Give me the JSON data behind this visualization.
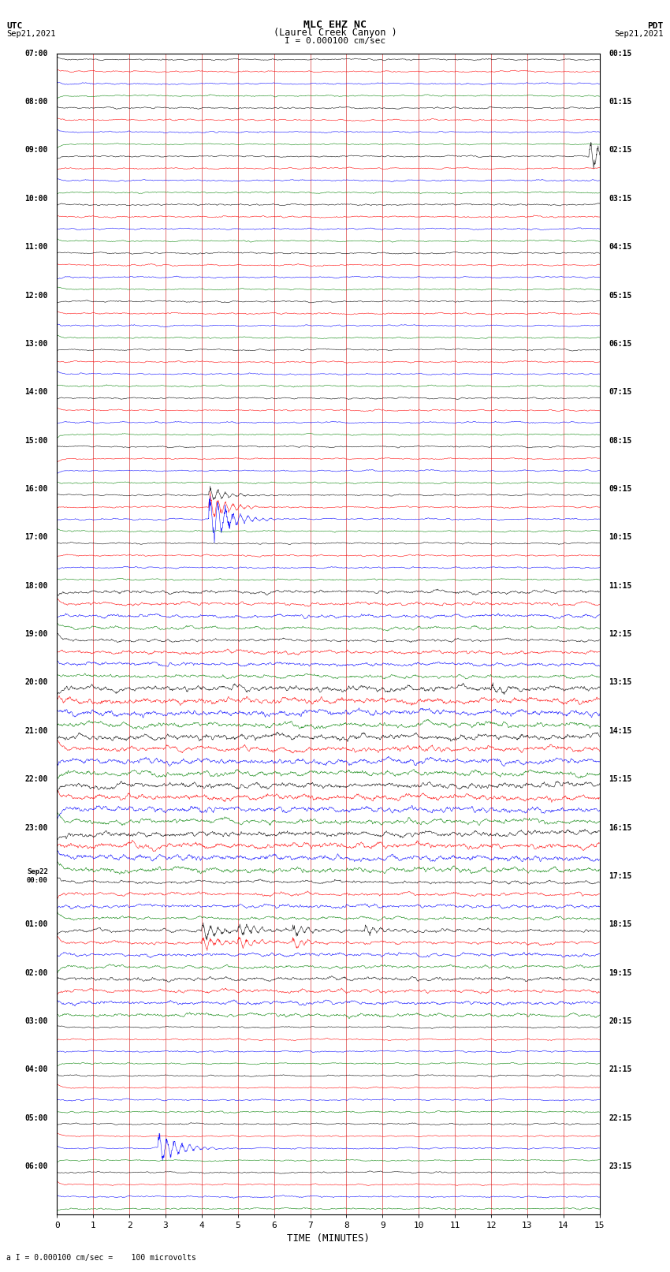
{
  "title_line1": "MLC EHZ NC",
  "title_line2": "(Laurel Creek Canyon )",
  "scale_label": "I = 0.000100 cm/sec",
  "utc_label_line1": "UTC",
  "utc_label_line2": "Sep21,2021",
  "pdt_label_line1": "PDT",
  "pdt_label_line2": "Sep21,2021",
  "bottom_label": "a I = 0.000100 cm/sec =    100 microvolts",
  "xlabel": "TIME (MINUTES)",
  "background_color": "#ffffff",
  "grid_color": "#cc0000",
  "total_rows": 96,
  "minutes_per_row": 15,
  "row_colors": [
    "black",
    "red",
    "blue",
    "green"
  ],
  "left_hour_labels": [
    "07:00",
    "08:00",
    "09:00",
    "10:00",
    "11:00",
    "12:00",
    "13:00",
    "14:00",
    "15:00",
    "16:00",
    "17:00",
    "18:00",
    "19:00",
    "20:00",
    "21:00",
    "22:00",
    "23:00",
    "Sep22",
    "01:00",
    "02:00",
    "03:00",
    "04:00",
    "05:00",
    "06:00"
  ],
  "left_extra_labels": [
    "",
    "",
    "",
    "",
    "",
    "",
    "",
    "",
    "",
    "",
    "",
    "",
    "",
    "",
    "",
    "",
    "",
    "00:00",
    "",
    "",
    "",
    "",
    "",
    ""
  ],
  "right_hour_labels": [
    "00:15",
    "01:15",
    "02:15",
    "03:15",
    "04:15",
    "05:15",
    "06:15",
    "07:15",
    "08:15",
    "09:15",
    "10:15",
    "11:15",
    "12:15",
    "13:15",
    "14:15",
    "15:15",
    "16:15",
    "17:15",
    "18:15",
    "19:15",
    "20:15",
    "21:15",
    "22:15",
    "23:15"
  ],
  "noise_base": 0.08,
  "noise_medium": 0.18,
  "noise_high": 0.3,
  "high_noise_rows": [
    [
      52,
      68
    ]
  ],
  "medium_noise_rows": [
    [
      44,
      52
    ],
    [
      68,
      80
    ]
  ],
  "special_events": {
    "8": {
      "times": [
        14.7
      ],
      "amps": [
        2.8
      ],
      "color_note": "blue spike end"
    },
    "36": {
      "times": [
        4.2
      ],
      "amps": [
        1.2
      ],
      "color_note": "black bump"
    },
    "37": {
      "times": [
        4.2
      ],
      "amps": [
        2.2
      ],
      "color_note": "red bump"
    },
    "38": {
      "times": [
        4.2
      ],
      "amps": [
        4.5
      ],
      "color_note": "green BIG spike"
    },
    "52": {
      "times": [
        12.0
      ],
      "amps": [
        1.0
      ],
      "color_note": ""
    },
    "72": {
      "times": [
        4.0,
        5.0,
        6.5,
        8.5
      ],
      "amps": [
        1.5,
        1.2,
        1.0,
        0.8
      ],
      "color_note": "red spikes"
    },
    "73": {
      "times": [
        4.0,
        5.0,
        6.5
      ],
      "amps": [
        1.2,
        1.0,
        0.8
      ],
      "color_note": ""
    },
    "90": {
      "times": [
        2.8
      ],
      "amps": [
        2.8
      ],
      "color_note": "green spike"
    }
  }
}
